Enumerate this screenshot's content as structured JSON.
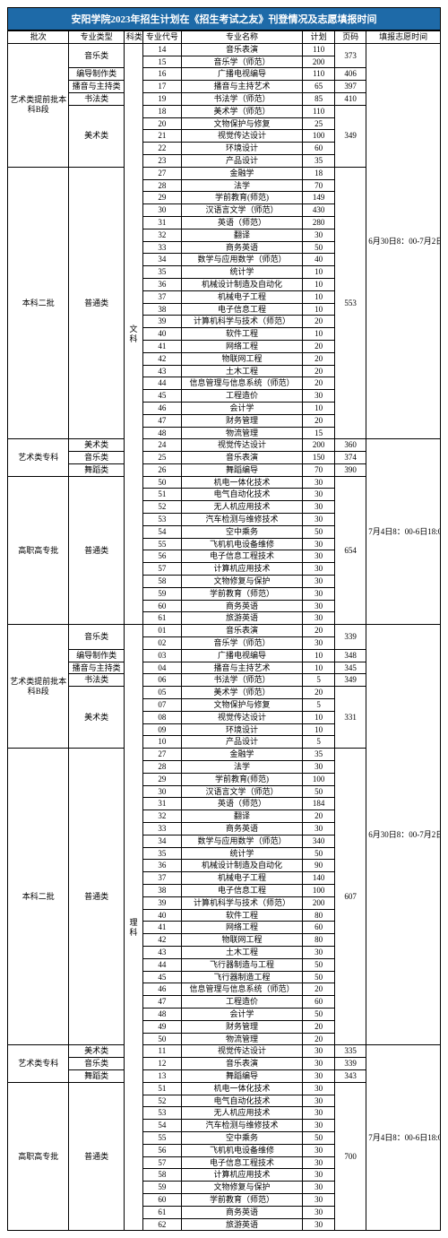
{
  "title": "安阳学院2023年招生计划在《招生考试之友》刊登情况及志愿填报时间",
  "headers": {
    "batch": "批次",
    "type": "专业类型",
    "subject": "科类",
    "code": "专业代号",
    "name": "专业名称",
    "plan": "计划",
    "page": "页码",
    "time": "填报志愿时间"
  },
  "subjects": {
    "wen": "文科",
    "li": "理科"
  },
  "times": {
    "t1": "6月30日8：00-7月2日18：00",
    "t2": "7月4日8：00-6日18:00"
  },
  "batches": {
    "b1": "艺术类提前批本科B段",
    "b2": "本科二批",
    "b3": "艺术类专科",
    "b4": "高职高专批"
  },
  "types": {
    "yinyue": "音乐类",
    "biandao": "编导制作类",
    "boyin": "播音与主持类",
    "shufa": "书法类",
    "meishu": "美术类",
    "putong": "普通类",
    "wudao": "舞蹈类"
  },
  "pages": {
    "p373": "373",
    "p406": "406",
    "p397": "397",
    "p410": "410",
    "p349": "349",
    "p553": "553",
    "p360": "360",
    "p374": "374",
    "p390": "390",
    "p654": "654",
    "p339": "339",
    "p348": "348",
    "p345": "345",
    "p331": "331",
    "p607": "607",
    "p335": "335",
    "p343": "343",
    "p700": "700"
  },
  "rows": [
    {
      "c": "14",
      "n": "音乐表演",
      "p": "110"
    },
    {
      "c": "15",
      "n": "音乐学（师范）",
      "p": "200"
    },
    {
      "c": "16",
      "n": "广播电视编导",
      "p": "110"
    },
    {
      "c": "17",
      "n": "播音与主持艺术",
      "p": "65"
    },
    {
      "c": "19",
      "n": "书法学（师范）",
      "p": "85"
    },
    {
      "c": "18",
      "n": "美术学（师范）",
      "p": "110"
    },
    {
      "c": "20",
      "n": "文物保护与修复",
      "p": "25"
    },
    {
      "c": "21",
      "n": "视觉传达设计",
      "p": "100"
    },
    {
      "c": "22",
      "n": "环境设计",
      "p": "60"
    },
    {
      "c": "23",
      "n": "产品设计",
      "p": "35"
    },
    {
      "c": "27",
      "n": "金融学",
      "p": "18"
    },
    {
      "c": "28",
      "n": "法学",
      "p": "70"
    },
    {
      "c": "29",
      "n": "学前教育(师范)",
      "p": "149"
    },
    {
      "c": "30",
      "n": "汉语言文学（师范）",
      "p": "430"
    },
    {
      "c": "31",
      "n": "英语（师范）",
      "p": "280"
    },
    {
      "c": "32",
      "n": "翻译",
      "p": "30"
    },
    {
      "c": "33",
      "n": "商务英语",
      "p": "50"
    },
    {
      "c": "34",
      "n": "数学与应用数学（师范）",
      "p": "40"
    },
    {
      "c": "35",
      "n": "统计学",
      "p": "10"
    },
    {
      "c": "36",
      "n": "机械设计制造及自动化",
      "p": "10"
    },
    {
      "c": "37",
      "n": "机械电子工程",
      "p": "10"
    },
    {
      "c": "38",
      "n": "电子信息工程",
      "p": "10"
    },
    {
      "c": "39",
      "n": "计算机科学与技术（师范）",
      "p": "20"
    },
    {
      "c": "40",
      "n": "软件工程",
      "p": "10"
    },
    {
      "c": "41",
      "n": "网络工程",
      "p": "20"
    },
    {
      "c": "42",
      "n": "物联网工程",
      "p": "20"
    },
    {
      "c": "43",
      "n": "土木工程",
      "p": "20"
    },
    {
      "c": "44",
      "n": "信息管理与信息系统（师范）",
      "p": "20"
    },
    {
      "c": "45",
      "n": "工程造价",
      "p": "30"
    },
    {
      "c": "46",
      "n": "会计学",
      "p": "10"
    },
    {
      "c": "47",
      "n": "财务管理",
      "p": "20"
    },
    {
      "c": "48",
      "n": "物流管理",
      "p": "15"
    },
    {
      "c": "24",
      "n": "视觉传达设计",
      "p": "200"
    },
    {
      "c": "25",
      "n": "音乐表演",
      "p": "150"
    },
    {
      "c": "26",
      "n": "舞蹈编导",
      "p": "70"
    },
    {
      "c": "50",
      "n": "机电一体化技术",
      "p": "30"
    },
    {
      "c": "51",
      "n": "电气自动化技术",
      "p": "30"
    },
    {
      "c": "52",
      "n": "无人机应用技术",
      "p": "30"
    },
    {
      "c": "53",
      "n": "汽车检测与维修技术",
      "p": "30"
    },
    {
      "c": "54",
      "n": "空中乘务",
      "p": "50"
    },
    {
      "c": "55",
      "n": "飞机机电设备维修",
      "p": "30"
    },
    {
      "c": "56",
      "n": "电子信息工程技术",
      "p": "30"
    },
    {
      "c": "57",
      "n": "计算机应用技术",
      "p": "30"
    },
    {
      "c": "58",
      "n": "文物修复与保护",
      "p": "30"
    },
    {
      "c": "59",
      "n": "学前教育（师范）",
      "p": "30"
    },
    {
      "c": "60",
      "n": "商务英语",
      "p": "30"
    },
    {
      "c": "61",
      "n": "旅游英语",
      "p": "30"
    },
    {
      "c": "01",
      "n": "音乐表演",
      "p": "20"
    },
    {
      "c": "02",
      "n": "音乐学（师范）",
      "p": "30"
    },
    {
      "c": "03",
      "n": "广播电视编导",
      "p": "10"
    },
    {
      "c": "04",
      "n": "播音与主持艺术",
      "p": "10"
    },
    {
      "c": "06",
      "n": "书法学（师范）",
      "p": "5"
    },
    {
      "c": "05",
      "n": "美术学（师范）",
      "p": "20"
    },
    {
      "c": "07",
      "n": "文物保护与修复",
      "p": "5"
    },
    {
      "c": "08",
      "n": "视觉传达设计",
      "p": "10"
    },
    {
      "c": "09",
      "n": "环境设计",
      "p": "10"
    },
    {
      "c": "10",
      "n": "产品设计",
      "p": "5"
    },
    {
      "c": "27",
      "n": "金融学",
      "p": "35"
    },
    {
      "c": "28",
      "n": "法学",
      "p": "30"
    },
    {
      "c": "29",
      "n": "学前教育(师范)",
      "p": "100"
    },
    {
      "c": "30",
      "n": "汉语言文学（师范）",
      "p": "50"
    },
    {
      "c": "31",
      "n": "英语（师范）",
      "p": "184"
    },
    {
      "c": "32",
      "n": "翻译",
      "p": "20"
    },
    {
      "c": "33",
      "n": "商务英语",
      "p": "30"
    },
    {
      "c": "34",
      "n": "数学与应用数学（师范）",
      "p": "340"
    },
    {
      "c": "35",
      "n": "统计学",
      "p": "50"
    },
    {
      "c": "36",
      "n": "机械设计制造及自动化",
      "p": "90"
    },
    {
      "c": "37",
      "n": "机械电子工程",
      "p": "140"
    },
    {
      "c": "38",
      "n": "电子信息工程",
      "p": "100"
    },
    {
      "c": "39",
      "n": "计算机科学与技术（师范）",
      "p": "200"
    },
    {
      "c": "40",
      "n": "软件工程",
      "p": "80"
    },
    {
      "c": "41",
      "n": "网络工程",
      "p": "60"
    },
    {
      "c": "42",
      "n": "物联网工程",
      "p": "80"
    },
    {
      "c": "43",
      "n": "土木工程",
      "p": "30"
    },
    {
      "c": "44",
      "n": "飞行器制造与工程",
      "p": "50"
    },
    {
      "c": "45",
      "n": "飞行器制造工程",
      "p": "50"
    },
    {
      "c": "46",
      "n": "信息管理与信息系统（师范）",
      "p": "20"
    },
    {
      "c": "47",
      "n": "工程造价",
      "p": "60"
    },
    {
      "c": "48",
      "n": "会计学",
      "p": "50"
    },
    {
      "c": "49",
      "n": "财务管理",
      "p": "20"
    },
    {
      "c": "50",
      "n": "物流管理",
      "p": "20"
    },
    {
      "c": "11",
      "n": "视觉传达设计",
      "p": "30"
    },
    {
      "c": "12",
      "n": "音乐表演",
      "p": "30"
    },
    {
      "c": "13",
      "n": "舞蹈编导",
      "p": "30"
    },
    {
      "c": "51",
      "n": "机电一体化技术",
      "p": "30"
    },
    {
      "c": "52",
      "n": "电气自动化技术",
      "p": "30"
    },
    {
      "c": "53",
      "n": "无人机应用技术",
      "p": "30"
    },
    {
      "c": "54",
      "n": "汽车检测与维修技术",
      "p": "30"
    },
    {
      "c": "55",
      "n": "空中乘务",
      "p": "50"
    },
    {
      "c": "56",
      "n": "飞机机电设备维修",
      "p": "30"
    },
    {
      "c": "57",
      "n": "电子信息工程技术",
      "p": "30"
    },
    {
      "c": "58",
      "n": "计算机应用技术",
      "p": "30"
    },
    {
      "c": "59",
      "n": "文物修复与保护",
      "p": "30"
    },
    {
      "c": "60",
      "n": "学前教育（师范）",
      "p": "30"
    },
    {
      "c": "61",
      "n": "商务英语",
      "p": "30"
    },
    {
      "c": "62",
      "n": "旅游英语",
      "p": "30"
    }
  ]
}
